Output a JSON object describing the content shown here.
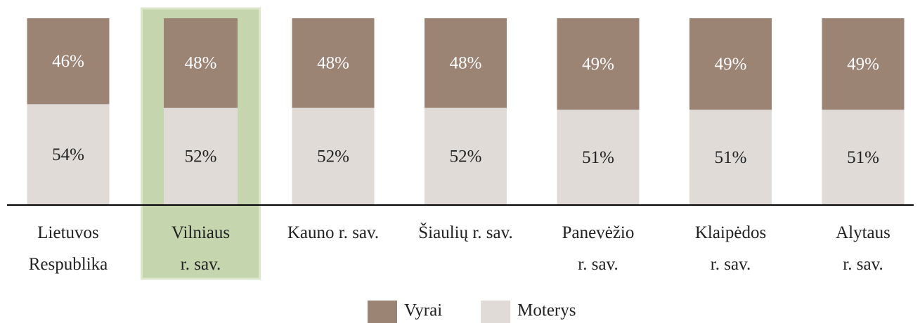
{
  "chart_data": {
    "type": "stacked_bar",
    "categories": [
      [
        "Lietuvos",
        "Respublika"
      ],
      [
        "Vilniaus",
        "r. sav."
      ],
      [
        "Kauno r. sav."
      ],
      [
        "Šiaulių r. sav."
      ],
      [
        "Panevėžio",
        "r. sav."
      ],
      [
        "Klaipėdos",
        "r. sav."
      ],
      [
        "Alytaus",
        "r. sav."
      ]
    ],
    "series": [
      {
        "name": "Moterys",
        "color": "#e0dbd7",
        "label_color": "#222222",
        "values": [
          54,
          52,
          52,
          52,
          51,
          51,
          51
        ],
        "value_labels": [
          "54%",
          "52%",
          "52%",
          "52%",
          "51%",
          "51%",
          "51%"
        ]
      },
      {
        "name": "Vyrai",
        "color": "#9c8475",
        "label_color": "#ffffff",
        "values": [
          46,
          48,
          48,
          48,
          49,
          49,
          49
        ],
        "value_labels": [
          "46%",
          "48%",
          "48%",
          "48%",
          "49%",
          "49%",
          "49%"
        ]
      }
    ],
    "ylim": [
      0,
      100
    ],
    "highlight": 1,
    "highlight_color": "#c5d5ad",
    "legend": "bottom"
  }
}
